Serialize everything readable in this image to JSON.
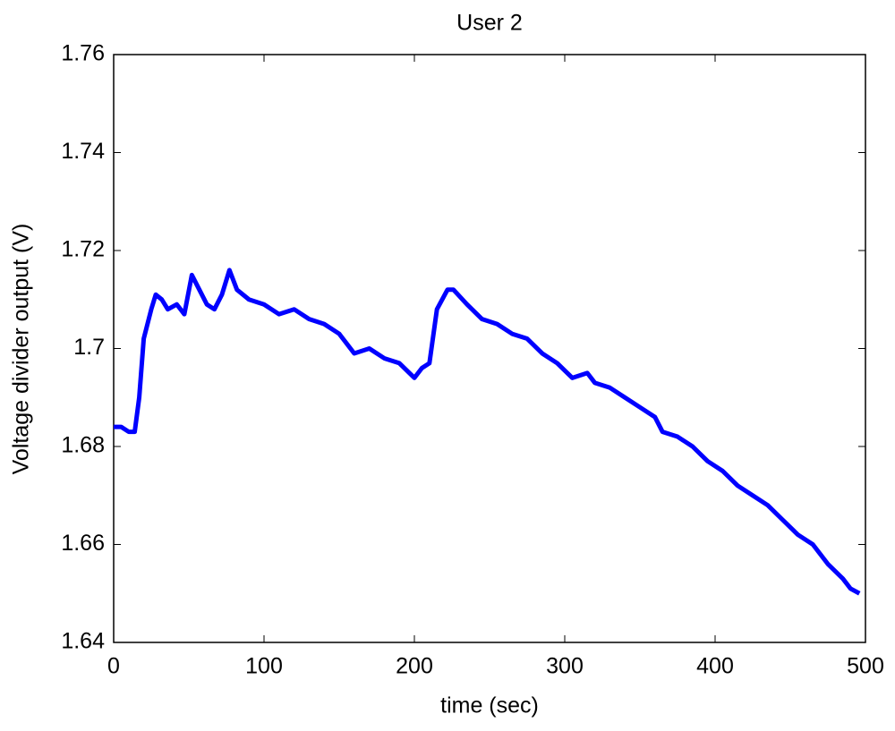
{
  "chart_data": {
    "type": "line",
    "title": "User 2",
    "x_label": "time (sec)",
    "y_label": "Voltage divider output (V)",
    "x": [
      0,
      5,
      10,
      14,
      17,
      20,
      25,
      28,
      32,
      36,
      42,
      47,
      52,
      57,
      62,
      67,
      72,
      77,
      82,
      90,
      100,
      110,
      120,
      130,
      140,
      150,
      160,
      170,
      180,
      190,
      200,
      205,
      210,
      215,
      222,
      226,
      235,
      245,
      255,
      265,
      275,
      285,
      295,
      305,
      315,
      320,
      330,
      340,
      350,
      360,
      365,
      375,
      385,
      395,
      405,
      415,
      425,
      435,
      445,
      455,
      465,
      475,
      485,
      490,
      496
    ],
    "series": [
      {
        "name": "User 2",
        "color": "#0000ff",
        "values": [
          1.684,
          1.684,
          1.683,
          1.683,
          1.69,
          1.702,
          1.708,
          1.711,
          1.71,
          1.708,
          1.709,
          1.707,
          1.715,
          1.712,
          1.709,
          1.708,
          1.711,
          1.716,
          1.712,
          1.71,
          1.709,
          1.707,
          1.708,
          1.706,
          1.705,
          1.703,
          1.699,
          1.7,
          1.698,
          1.697,
          1.694,
          1.696,
          1.697,
          1.708,
          1.712,
          1.712,
          1.709,
          1.706,
          1.705,
          1.703,
          1.702,
          1.699,
          1.697,
          1.694,
          1.695,
          1.693,
          1.692,
          1.69,
          1.688,
          1.686,
          1.683,
          1.682,
          1.68,
          1.677,
          1.675,
          1.672,
          1.67,
          1.668,
          1.665,
          1.662,
          1.66,
          1.656,
          1.653,
          1.651,
          1.65
        ]
      }
    ],
    "xlim": [
      0,
      500
    ],
    "xticks": [
      0,
      100,
      200,
      300,
      400,
      500
    ],
    "ylim": [
      1.64,
      1.76
    ],
    "yticks": [
      1.64,
      1.66,
      1.68,
      1.7,
      1.72,
      1.74,
      1.76
    ]
  }
}
